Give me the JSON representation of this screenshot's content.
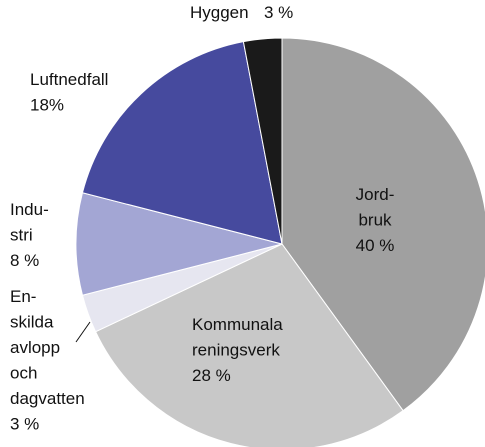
{
  "chart_data": {
    "type": "pie",
    "categories": [
      [
        "Jord-",
        "bruk"
      ],
      [
        "Kommunala",
        "reningsverk"
      ],
      [
        "En-",
        "skilda",
        "avlopp",
        "och",
        "dagvatten"
      ],
      [
        "Indu-",
        "stri"
      ],
      [
        "Luftnedfall"
      ],
      [
        "Hyggen"
      ]
    ],
    "values": [
      40,
      28,
      3,
      8,
      18,
      3
    ],
    "value_labels": [
      "40 %",
      "28 %",
      "3 %",
      "8 %",
      "18%",
      "3 %"
    ],
    "colors": [
      "#a0a0a0",
      "#c8c8c8",
      "#e6e6f0",
      "#a3a6d4",
      "#464a9e",
      "#1a1a1a"
    ]
  }
}
